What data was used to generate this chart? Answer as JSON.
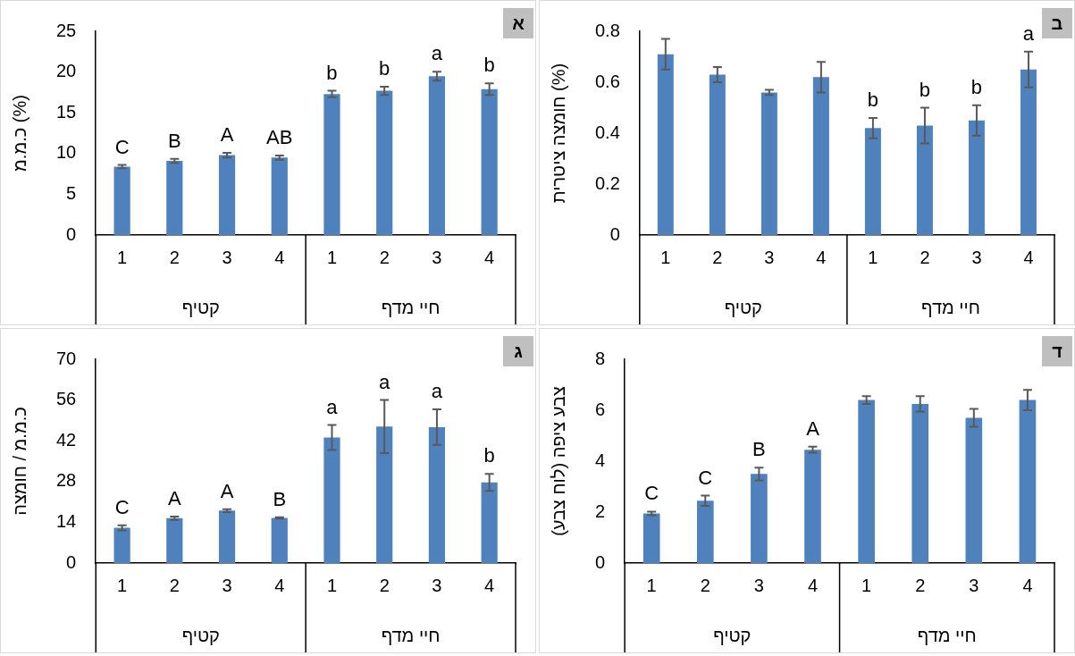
{
  "chart_data": [
    {
      "type": "bar",
      "title": "א",
      "ylabel": "כ.מ.מ (%)",
      "categories": [
        "1",
        "2",
        "3",
        "4",
        "1",
        "2",
        "3",
        "4"
      ],
      "color": "#4f81bd",
      "values": [
        8.4,
        9.1,
        9.8,
        9.5,
        17.3,
        17.7,
        19.5,
        17.9
      ],
      "errors": [
        0.2,
        0.25,
        0.3,
        0.25,
        0.4,
        0.5,
        0.55,
        0.7
      ],
      "value_labels": [
        "C",
        "B",
        "A",
        "AB",
        "b",
        "b",
        "a",
        "b"
      ],
      "ylim": [
        0,
        25
      ],
      "yticks": [
        0,
        5,
        10,
        15,
        20,
        25
      ],
      "annotations": [
        "קטיף",
        "חיי מדף"
      ]
    },
    {
      "type": "bar",
      "title": "ב",
      "ylabel": "חומצה ציטרית (%)",
      "categories": [
        "1",
        "2",
        "3",
        "4",
        "1",
        "2",
        "3",
        "4"
      ],
      "color": "#4f81bd",
      "values": [
        0.71,
        0.63,
        0.56,
        0.62,
        0.42,
        0.43,
        0.45,
        0.65
      ],
      "errors": [
        0.06,
        0.03,
        0.01,
        0.06,
        0.04,
        0.07,
        0.06,
        0.07
      ],
      "value_labels": [
        null,
        null,
        null,
        null,
        "b",
        "b",
        "b",
        "a"
      ],
      "ylim": [
        0,
        0.8
      ],
      "yticks": [
        0,
        0.2,
        0.4,
        0.6,
        0.8
      ],
      "annotations": [
        "קטיף",
        "חיי מדף"
      ]
    },
    {
      "type": "bar",
      "title": "ג",
      "ylabel": "כ.מ.מ / חומצה",
      "categories": [
        "1",
        "2",
        "3",
        "4",
        "1",
        "2",
        "3",
        "4"
      ],
      "color": "#4f81bd",
      "values": [
        12.1,
        15.4,
        18.0,
        15.5,
        43.1,
        46.9,
        46.7,
        27.7
      ],
      "errors": [
        0.9,
        0.6,
        0.5,
        0.2,
        4.3,
        9.1,
        6.1,
        2.9
      ],
      "value_labels": [
        "C",
        "A",
        "A",
        "B",
        "a",
        "a",
        "a",
        "b"
      ],
      "ylim": [
        0,
        70
      ],
      "yticks": [
        0,
        14,
        28,
        42,
        56,
        70
      ],
      "annotations": [
        "קטיף",
        "חיי מדף"
      ]
    },
    {
      "type": "bar",
      "title": "ד",
      "ylabel": "צבע ציפה (לוח צבע)",
      "categories": [
        "1",
        "2",
        "3",
        "4",
        "1",
        "2",
        "3",
        "4"
      ],
      "color": "#4f81bd",
      "values": [
        1.95,
        2.45,
        3.5,
        4.45,
        6.4,
        6.25,
        5.7,
        6.4
      ],
      "errors": [
        0.07,
        0.2,
        0.25,
        0.12,
        0.15,
        0.3,
        0.35,
        0.4
      ],
      "value_labels": [
        "C",
        "C",
        "B",
        "A",
        null,
        null,
        null,
        null
      ],
      "ylim": [
        0,
        8
      ],
      "yticks": [
        0,
        2,
        4,
        6,
        8
      ],
      "annotations": [
        "קטיף",
        "חיי מדף"
      ]
    }
  ]
}
